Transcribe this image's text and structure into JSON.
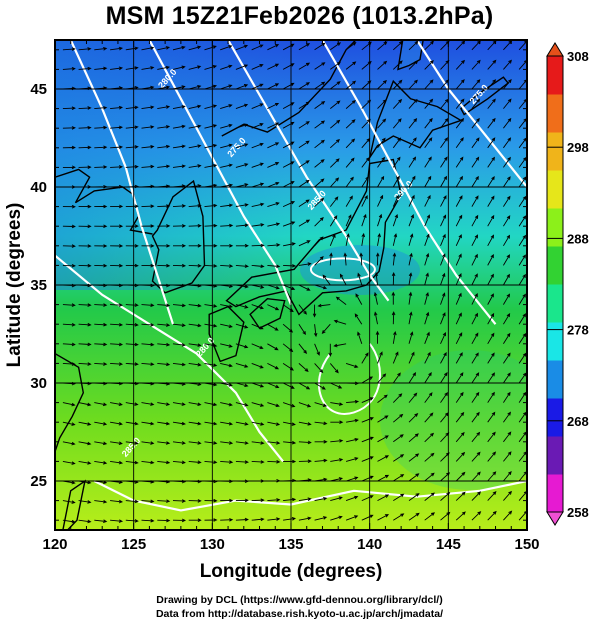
{
  "title": "MSM 15Z21Feb2026 (1013.2hPa)",
  "x_axis": {
    "label": "Longitude (degrees)",
    "range": [
      120,
      150
    ],
    "ticks": [
      "120",
      "125",
      "130",
      "135",
      "140",
      "145",
      "150"
    ]
  },
  "y_axis": {
    "label": "Latitude  (degrees)",
    "range": [
      22.5,
      47.5
    ],
    "ticks": [
      "25",
      "30",
      "35",
      "40",
      "45"
    ]
  },
  "colorbar": {
    "range": [
      258,
      308
    ],
    "ticks": [
      "258",
      "268",
      "278",
      "288",
      "298",
      "308"
    ],
    "colors": [
      "#e61ad2",
      "#6a1ab4",
      "#1a1ae6",
      "#1a8ce6",
      "#1ae6e6",
      "#1ae68c",
      "#32d232",
      "#8cf01a",
      "#e6e61a",
      "#f0b41a",
      "#f06e1a",
      "#e61a1a"
    ]
  },
  "contour_labels": [
    "280.0",
    "275.0",
    "285.0",
    "290.0",
    "275.0",
    "280.0",
    "285.0"
  ],
  "footer": {
    "line1": "Drawing by DCL (https://www.gfd-dennou.org/library/dcl/)",
    "line2": "Data from http://database.rish.kyoto-u.ac.jp/arch/jmadata/"
  }
}
